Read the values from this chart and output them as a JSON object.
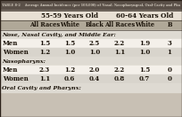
{
  "title": "TABLE 8-2    Average Annual Incidence (per 100,000) of Nasal, Nasopharyngeal, Oral-Cavity and Pha",
  "header1": "55-59 Years Old",
  "header2": "60-64 Years Old",
  "col_headers": [
    "All Races",
    "White",
    "Black",
    "All Races",
    "White",
    "B"
  ],
  "sections": [
    {
      "name": "Nose, Nasal Cavity, and Middle Ear:",
      "rows": [
        {
          "label": "Men",
          "vals": [
            "1.5",
            "1.5",
            "2.5",
            "2.2",
            "1.9",
            "3"
          ]
        },
        {
          "label": "Women",
          "vals": [
            "1.2",
            "1.0",
            "1.0",
            "1.1",
            "1.0",
            "1"
          ]
        }
      ]
    },
    {
      "name": "Nasopharynx:",
      "rows": [
        {
          "label": "Men",
          "vals": [
            "2.3",
            "1.2",
            "2.0",
            "2.2",
            "1.5",
            "0"
          ]
        },
        {
          "label": "Women",
          "vals": [
            "1.1",
            "0.6",
            "0.4",
            "0.8",
            "0.7",
            "0"
          ]
        }
      ]
    },
    {
      "name": "Oral Cavity and Pharynx:",
      "rows": []
    }
  ],
  "title_bg": "#5a5048",
  "title_text_color": "#d0c8bc",
  "group_header_bg": "#e8e0d4",
  "subheader_bg": "#b0a898",
  "subheader_text_color": "#1a1208",
  "section_bg": "#dedad2",
  "row_bg_white": "#f4f0ea",
  "row_bg_gray": "#d8d4cc",
  "border_color": "#2a2018",
  "body_text_color": "#1a1208",
  "fig_bg": "#c8c0b4"
}
